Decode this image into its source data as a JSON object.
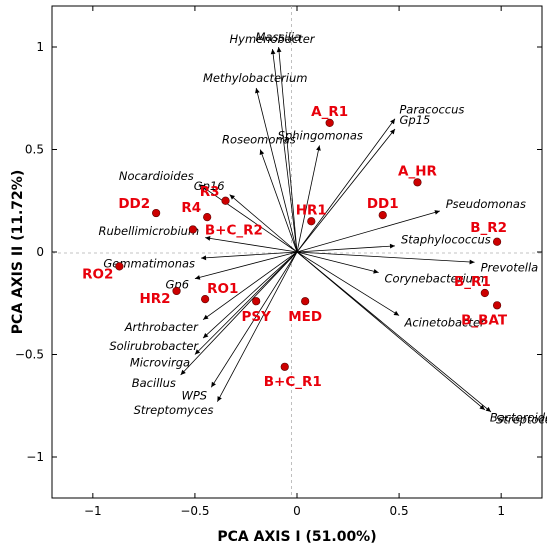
{
  "chart_data": {
    "type": "scatter",
    "title": "",
    "xlabel": "PCA AXIS I (51.00%)",
    "ylabel": "PCA AXIS II (11.72%)",
    "xlim": [
      -1.2,
      1.2
    ],
    "ylim": [
      -1.2,
      1.2
    ],
    "xticks": [
      -1,
      -0.5,
      0,
      0.5,
      1
    ],
    "yticks": [
      -1,
      -0.5,
      0,
      0.5,
      1
    ],
    "xtick_labels": [
      "−1",
      "−0.5",
      "0",
      "0.5",
      "1"
    ],
    "ytick_labels": [
      "−1",
      "−0.5",
      "0",
      "0.5",
      "1"
    ],
    "grid": false,
    "zero_lines": true,
    "point_color": "#cc0000",
    "label_color": "#e8000b",
    "arrow_color": "#000000",
    "sites": [
      {
        "label": "A_R1",
        "x": 0.16,
        "y": 0.63
      },
      {
        "label": "A_HR",
        "x": 0.59,
        "y": 0.34
      },
      {
        "label": "DD1",
        "x": 0.42,
        "y": 0.18
      },
      {
        "label": "HR1",
        "x": 0.07,
        "y": 0.15
      },
      {
        "label": "B_R2",
        "x": 0.98,
        "y": 0.05
      },
      {
        "label": "B_R1",
        "x": 0.92,
        "y": -0.2
      },
      {
        "label": "B_BAT",
        "x": 0.98,
        "y": -0.26
      },
      {
        "label": "MED",
        "x": 0.04,
        "y": -0.24
      },
      {
        "label": "PSY",
        "x": -0.2,
        "y": -0.24
      },
      {
        "label": "B+C_R1",
        "x": -0.06,
        "y": -0.56
      },
      {
        "label": "RO1",
        "x": -0.45,
        "y": -0.23
      },
      {
        "label": "HR2",
        "x": -0.59,
        "y": -0.19
      },
      {
        "label": "RO2",
        "x": -0.87,
        "y": -0.07
      },
      {
        "label": "DD2",
        "x": -0.69,
        "y": 0.19
      },
      {
        "label": "R3",
        "x": -0.35,
        "y": 0.25
      },
      {
        "label": "R4",
        "x": -0.44,
        "y": 0.17
      },
      {
        "label": "B+C_R2",
        "x": -0.51,
        "y": 0.11
      }
    ],
    "vectors": [
      {
        "label": "Hymenobacter",
        "x": -0.12,
        "y": 0.99
      },
      {
        "label": "Massilia",
        "x": -0.09,
        "y": 1.0
      },
      {
        "label": "Methylobacterium",
        "x": -0.2,
        "y": 0.8
      },
      {
        "label": "Paracoccus",
        "x": 0.48,
        "y": 0.65
      },
      {
        "label": "Gp15",
        "x": 0.48,
        "y": 0.6
      },
      {
        "label": "Sphingomonas",
        "x": 0.11,
        "y": 0.52
      },
      {
        "label": "Roseomonas",
        "x": -0.18,
        "y": 0.5
      },
      {
        "label": "Nocardioides",
        "x": -0.48,
        "y": 0.33
      },
      {
        "label": "Gp16",
        "x": -0.33,
        "y": 0.28
      },
      {
        "label": "Pseudomonas",
        "x": 0.7,
        "y": 0.2
      },
      {
        "label": "Staphylococcus",
        "x": 0.48,
        "y": 0.03
      },
      {
        "label": "Prevotella",
        "x": 0.87,
        "y": -0.05
      },
      {
        "label": "Corynebacterium",
        "x": 0.4,
        "y": -0.1
      },
      {
        "label": "Acinetobacter",
        "x": 0.5,
        "y": -0.31
      },
      {
        "label": "Rubellimicrobium",
        "x": -0.45,
        "y": 0.07
      },
      {
        "label": "Gemmatimonas",
        "x": -0.47,
        "y": -0.03
      },
      {
        "label": "Gp6",
        "x": -0.5,
        "y": -0.13
      },
      {
        "label": "Arthrobacter",
        "x": -0.46,
        "y": -0.33
      },
      {
        "label": "Solirubrobacter",
        "x": -0.46,
        "y": -0.42
      },
      {
        "label": "Microvirga",
        "x": -0.5,
        "y": -0.5
      },
      {
        "label": "Bacillus",
        "x": -0.57,
        "y": -0.6
      },
      {
        "label": "WPS",
        "x": -0.42,
        "y": -0.66
      },
      {
        "label": "Streptomyces",
        "x": -0.39,
        "y": -0.73
      },
      {
        "label": "Bacteroides",
        "x": 0.92,
        "y": -0.77
      },
      {
        "label": "Streptococcus",
        "x": 0.95,
        "y": -0.78
      }
    ]
  }
}
